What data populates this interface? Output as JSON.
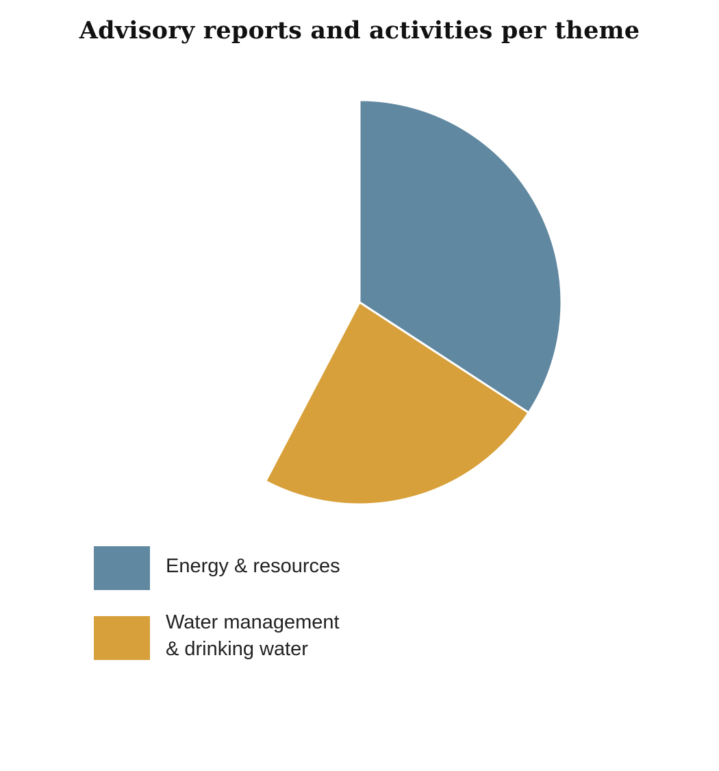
{
  "chart_data": {
    "type": "pie",
    "title": "Advisory reports and activities per theme",
    "unit": "percent of full circle",
    "start_angle": "12 o'clock, clockwise",
    "slices": [
      {
        "name": "Energy & resources",
        "label": "Energy & resources",
        "value": 34.2,
        "color": "#6088a0"
      },
      {
        "name": "Water management & drinking water",
        "label": "Water management\n& drinking water",
        "value": 23.5,
        "color": "#d7a03a"
      }
    ],
    "total": 100,
    "legend_position": "bottom-left"
  }
}
